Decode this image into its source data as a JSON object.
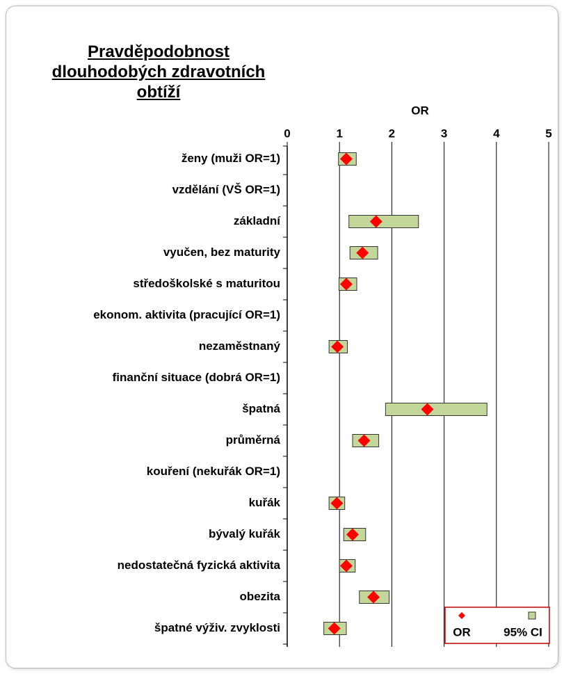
{
  "chart_data": {
    "type": "forest",
    "title": "Pravděpodobnost dlouhodobých zdravotních obtíží",
    "x_label": "OR",
    "categories": [
      "ženy  (muži OR=1)",
      "vzdělání (VŠ OR=1)",
      "základní",
      "vyučen, bez maturity",
      "středoškolské s maturitou",
      "ekonom. aktivita (pracující OR=1)",
      "nezaměstnaný",
      "finanční situace (dobrá OR=1)",
      "špatná",
      "průměrná",
      "kouření (nekuřák OR=1)",
      "kuřák",
      "bývalý kuřák",
      "nedostatečná fyzická aktivita",
      "obezita",
      "špatné výživ. zvyklosti"
    ],
    "series": [
      {
        "name": "OR",
        "color": "#ff0000",
        "values": [
          1.13,
          null,
          1.7,
          1.44,
          1.13,
          null,
          0.96,
          null,
          2.68,
          1.47,
          null,
          0.95,
          1.25,
          1.13,
          1.65,
          0.9
        ]
      },
      {
        "name": "95% CI",
        "color": "#c4d79b",
        "low": [
          0.98,
          null,
          1.18,
          1.2,
          0.99,
          null,
          0.8,
          null,
          1.88,
          1.25,
          null,
          0.8,
          1.08,
          1.0,
          1.38,
          0.7
        ],
        "high": [
          1.32,
          null,
          2.51,
          1.73,
          1.33,
          null,
          1.15,
          null,
          3.82,
          1.75,
          null,
          1.1,
          1.5,
          1.3,
          1.95,
          1.13
        ]
      }
    ],
    "xlim": [
      0,
      5
    ],
    "xticks": [
      0,
      1,
      2,
      3,
      4,
      5
    ],
    "grid": true
  }
}
